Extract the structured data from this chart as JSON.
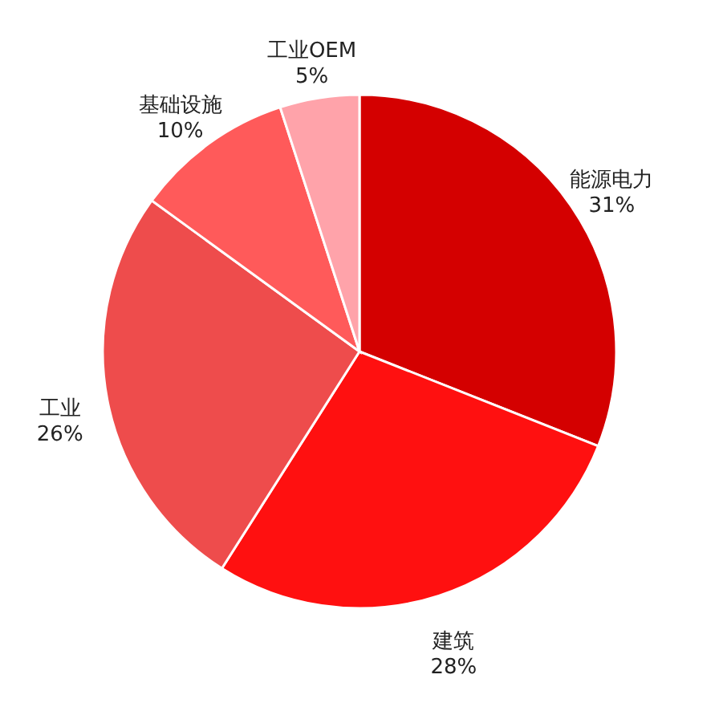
{
  "chart_data": {
    "type": "pie",
    "categories": [
      "能源电力",
      "建筑",
      "工业",
      "基础设施",
      "工业OEM"
    ],
    "values": [
      31,
      28,
      26,
      10,
      5
    ],
    "value_labels": [
      "31%",
      "28%",
      "26%",
      "10%",
      "5%"
    ],
    "colors": [
      "#d40000",
      "#ff1010",
      "#ee4c4c",
      "#ff5a5a",
      "#ffa3aa"
    ]
  }
}
